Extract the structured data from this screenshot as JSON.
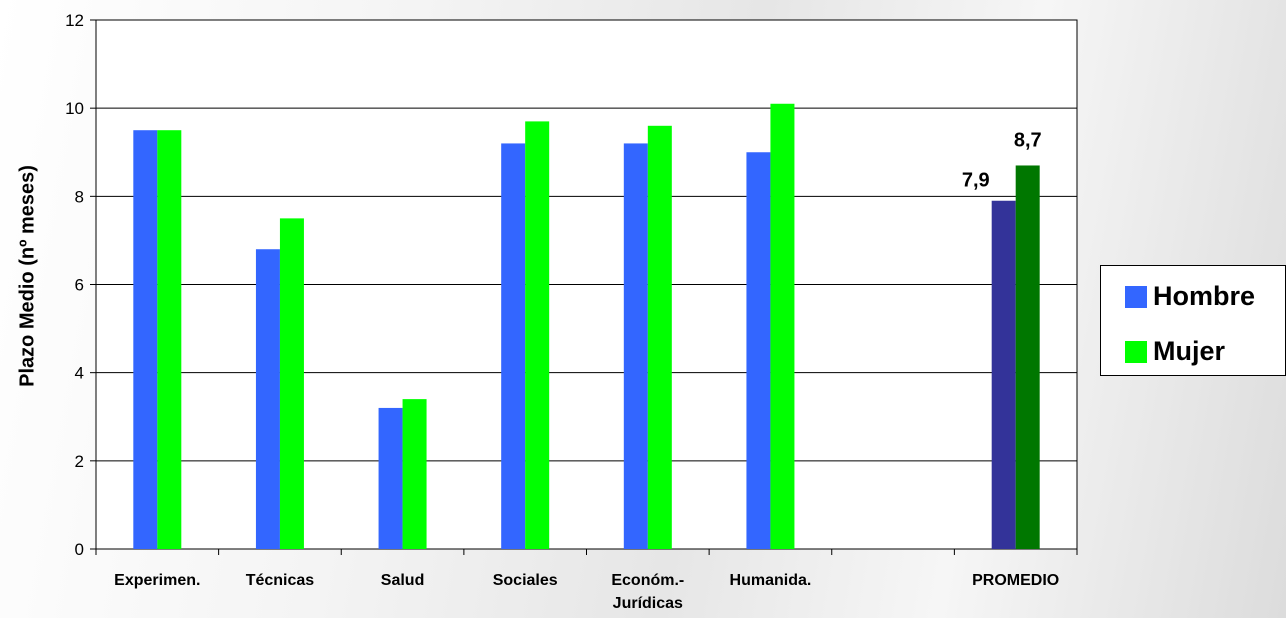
{
  "chart_data": {
    "type": "bar",
    "categories": [
      "Experimen.",
      "Técnicas",
      "Salud",
      "Sociales",
      "Económ.-\nJurídicas",
      "Humanida.",
      "",
      "PROMEDIO"
    ],
    "series": [
      {
        "name": "Hombre",
        "values": [
          9.5,
          6.8,
          3.2,
          9.2,
          9.2,
          9.0,
          null,
          7.9
        ],
        "color": "#3366ff",
        "highlight_color": "#333399"
      },
      {
        "name": "Mujer",
        "values": [
          9.5,
          7.5,
          3.4,
          9.7,
          9.6,
          10.1,
          null,
          8.7
        ],
        "color": "#00ff00",
        "highlight_color": "#007700"
      }
    ],
    "data_labels": {
      "Hombre": "7,9",
      "Mujer": "8,7"
    },
    "data_label_category": "PROMEDIO",
    "ylabel": "Plazo Medio (nº meses)",
    "ylim": [
      0,
      12
    ],
    "yticks": [
      "0",
      "2",
      "4",
      "6",
      "8",
      "10",
      "12"
    ],
    "grid": true,
    "legend_position": "right"
  }
}
